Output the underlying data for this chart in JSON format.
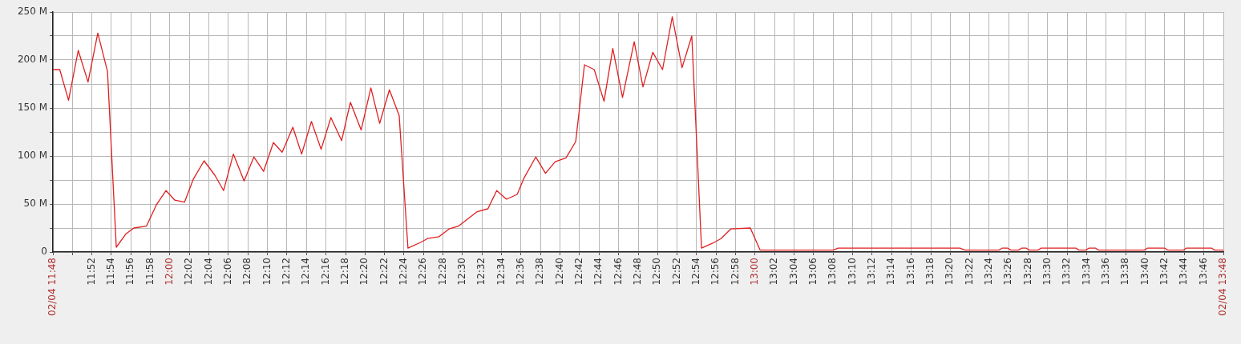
{
  "chart_data": {
    "type": "line",
    "grid": true,
    "legend": false,
    "marker": "none",
    "line_style": "solid",
    "xlim": [
      11.8,
      13.8
    ],
    "ylim": [
      0,
      250
    ],
    "xticks": [
      {
        "value": 11.8,
        "label": "02/04 11:48"
      },
      {
        "value": 11.8333,
        "label": null
      },
      {
        "value": 11.8667,
        "label": "11:52"
      },
      {
        "value": 11.9,
        "label": "11:54"
      },
      {
        "value": 11.9333,
        "label": "11:56"
      },
      {
        "value": 11.9667,
        "label": "11:58"
      },
      {
        "value": 12,
        "label": "12:00"
      },
      {
        "value": 12.0333,
        "label": "12:02"
      },
      {
        "value": 12.0667,
        "label": "12:04"
      },
      {
        "value": 12.1,
        "label": "12:06"
      },
      {
        "value": 12.1333,
        "label": "12:08"
      },
      {
        "value": 12.1667,
        "label": "12:10"
      },
      {
        "value": 12.2,
        "label": "12:12"
      },
      {
        "value": 12.2333,
        "label": "12:14"
      },
      {
        "value": 12.2667,
        "label": "12:16"
      },
      {
        "value": 12.3,
        "label": "12:18"
      },
      {
        "value": 12.3333,
        "label": "12:20"
      },
      {
        "value": 12.3667,
        "label": "12:22"
      },
      {
        "value": 12.4,
        "label": "12:24"
      },
      {
        "value": 12.4333,
        "label": "12:26"
      },
      {
        "value": 12.4667,
        "label": "12:28"
      },
      {
        "value": 12.5,
        "label": "12:30"
      },
      {
        "value": 12.5333,
        "label": "12:32"
      },
      {
        "value": 12.5667,
        "label": "12:34"
      },
      {
        "value": 12.6,
        "label": "12:36"
      },
      {
        "value": 12.6333,
        "label": "12:38"
      },
      {
        "value": 12.6667,
        "label": "12:40"
      },
      {
        "value": 12.7,
        "label": "12:42"
      },
      {
        "value": 12.7333,
        "label": "12:44"
      },
      {
        "value": 12.7667,
        "label": "12:46"
      },
      {
        "value": 12.8,
        "label": "12:48"
      },
      {
        "value": 12.8333,
        "label": "12:50"
      },
      {
        "value": 12.8667,
        "label": "12:52"
      },
      {
        "value": 12.9,
        "label": "12:54"
      },
      {
        "value": 12.9333,
        "label": "12:56"
      },
      {
        "value": 12.9667,
        "label": "12:58"
      },
      {
        "value": 13,
        "label": "13:00"
      },
      {
        "value": 13.0333,
        "label": "13:02"
      },
      {
        "value": 13.0667,
        "label": "13:04"
      },
      {
        "value": 13.1,
        "label": "13:06"
      },
      {
        "value": 13.1333,
        "label": "13:08"
      },
      {
        "value": 13.1667,
        "label": "13:10"
      },
      {
        "value": 13.2,
        "label": "13:12"
      },
      {
        "value": 13.2333,
        "label": "13:14"
      },
      {
        "value": 13.2667,
        "label": "13:16"
      },
      {
        "value": 13.3,
        "label": "13:18"
      },
      {
        "value": 13.3333,
        "label": "13:20"
      },
      {
        "value": 13.3667,
        "label": "13:22"
      },
      {
        "value": 13.4,
        "label": "13:24"
      },
      {
        "value": 13.4333,
        "label": "13:26"
      },
      {
        "value": 13.4667,
        "label": "13:28"
      },
      {
        "value": 13.5,
        "label": "13:30"
      },
      {
        "value": 13.5333,
        "label": "13:32"
      },
      {
        "value": 13.5667,
        "label": "13:34"
      },
      {
        "value": 13.6,
        "label": "13:36"
      },
      {
        "value": 13.6333,
        "label": "13:38"
      },
      {
        "value": 13.6667,
        "label": "13:40"
      },
      {
        "value": 13.7,
        "label": "13:42"
      },
      {
        "value": 13.7333,
        "label": "13:44"
      },
      {
        "value": 13.7667,
        "label": "13:46"
      },
      {
        "value": 13.8,
        "label": "02/04 13:48"
      }
    ],
    "yticks": [
      {
        "value": 0,
        "label": "0"
      },
      {
        "value": 25,
        "label": null
      },
      {
        "value": 50,
        "label": "50 M"
      },
      {
        "value": 75,
        "label": null
      },
      {
        "value": 100,
        "label": "100 M"
      },
      {
        "value": 125,
        "label": null
      },
      {
        "value": 150,
        "label": "150 M"
      },
      {
        "value": 175,
        "label": null
      },
      {
        "value": 200,
        "label": "200 M"
      },
      {
        "value": 225,
        "label": null
      },
      {
        "value": 250,
        "label": "250 M"
      }
    ],
    "series": [
      {
        "color": "#e02020",
        "x": [
          11.8,
          11.8117,
          11.8267,
          11.8433,
          11.86,
          11.8767,
          11.8933,
          11.9083,
          11.925,
          11.9383,
          11.96,
          11.9767,
          11.9933,
          12.0083,
          12.025,
          12.04,
          12.0583,
          12.0767,
          12.0917,
          12.1083,
          12.1267,
          12.1433,
          12.16,
          12.1767,
          12.1917,
          12.21,
          12.225,
          12.2417,
          12.2583,
          12.275,
          12.2933,
          12.3083,
          12.3267,
          12.3433,
          12.3583,
          12.375,
          12.3917,
          12.4067,
          12.4283,
          12.44,
          12.46,
          12.4767,
          12.4933,
          12.525,
          12.5433,
          12.5583,
          12.575,
          12.5933,
          12.605,
          12.625,
          12.6417,
          12.6583,
          12.6767,
          12.6933,
          12.7083,
          12.725,
          12.7417,
          12.7567,
          12.7733,
          12.7933,
          12.8083,
          12.825,
          12.8417,
          12.8583,
          12.875,
          12.8917,
          12.9083,
          12.9267,
          12.9417,
          12.9583,
          12.9917,
          13.0083,
          13.1333,
          13.1417,
          13.35,
          13.3583,
          13.4167,
          13.4217,
          13.4317,
          13.4367,
          13.45,
          13.455,
          13.4633,
          13.4683,
          13.4833,
          13.4883,
          13.5483,
          13.5533,
          13.565,
          13.57,
          13.5817,
          13.5867,
          13.665,
          13.67,
          13.7,
          13.705,
          13.7317,
          13.7367,
          13.78,
          13.785,
          13.8
        ],
        "values": [
          190,
          190,
          158,
          210,
          177,
          228,
          188,
          5,
          19,
          25,
          27,
          49,
          64,
          54,
          52,
          76,
          95,
          80,
          64,
          102,
          74,
          99,
          84,
          114,
          104,
          130,
          102,
          136,
          107,
          140,
          116,
          156,
          127,
          171,
          134,
          169,
          142,
          4,
          10,
          14,
          16,
          24,
          27,
          42,
          45,
          64,
          55,
          60,
          77,
          99,
          82,
          94,
          98,
          115,
          195,
          190,
          157,
          212,
          161,
          219,
          172,
          208,
          190,
          245,
          192,
          225,
          4,
          9,
          14,
          24,
          25,
          2,
          2,
          4,
          4,
          2,
          2,
          4,
          4,
          2,
          2,
          4,
          4,
          2,
          2,
          4,
          4,
          2,
          2,
          4,
          4,
          2,
          2,
          4,
          4,
          2,
          2,
          4,
          4,
          2,
          2
        ]
      }
    ]
  }
}
